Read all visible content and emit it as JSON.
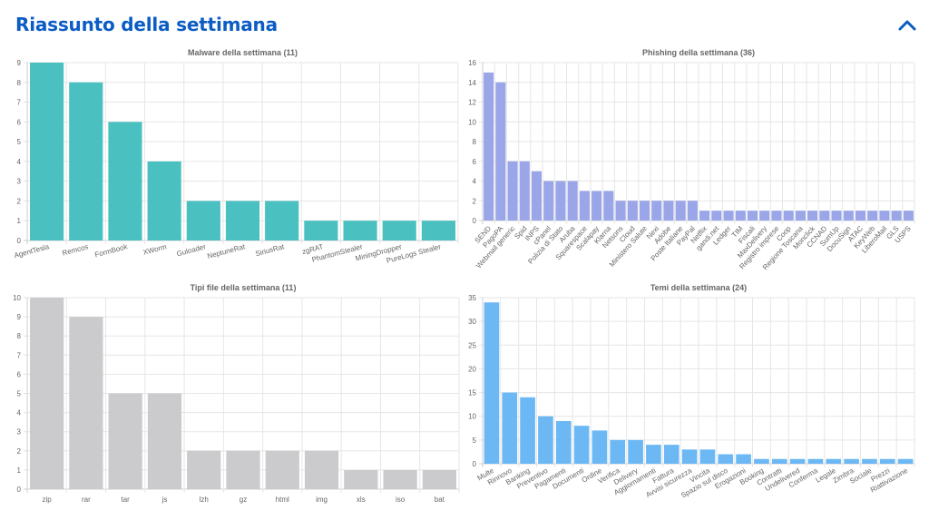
{
  "header": {
    "title": "Riassunto della settimana",
    "collapse_icon": "chevron-up-icon"
  },
  "charts": [
    {
      "id": "malware",
      "type": "bar",
      "title": "Malware della settimana (11)",
      "color": "#4bc0c0",
      "ylim": [
        0,
        9
      ],
      "yticks": [
        0,
        1,
        2,
        3,
        4,
        5,
        6,
        7,
        8,
        9
      ],
      "xlabel_rotation": "tilted",
      "categories": [
        "AgentTesla",
        "Remcos",
        "FormBook",
        "XWorm",
        "Guloader",
        "NeptuneRat",
        "SiriusRat",
        "zgRAT",
        "PhantomStealer",
        "MiningDropper",
        "PureLogs Stealer"
      ],
      "values": [
        9,
        8,
        6,
        4,
        2,
        2,
        2,
        1,
        1,
        1,
        1
      ]
    },
    {
      "id": "phishing",
      "type": "bar",
      "title": "Phishing della settimana (36)",
      "color": "#9ba6e8",
      "ylim": [
        0,
        16
      ],
      "yticks": [
        0,
        2,
        4,
        6,
        8,
        10,
        12,
        14,
        16
      ],
      "xlabel_rotation": "steep",
      "categories": [
        "SEND",
        "PagoPA",
        "Webmail generic",
        "Spid",
        "INPS",
        "cPanel",
        "Polizia di Stato",
        "Aruba",
        "Squarespace",
        "Scalapay",
        "Klarna",
        "Netsons",
        "Cloud",
        "Ministero Salute",
        "Nexi",
        "Adobe",
        "Poste Italiane",
        "PayPal",
        "Netflix",
        "gandi.net",
        "Ledger",
        "TIM",
        "Fiscali",
        "MaxDelivery",
        "Registro imprese",
        "Coop",
        "Regione Toscana",
        "Monclick",
        "CCNAD",
        "SumUp",
        "DocuSign",
        "ATAC",
        "KeyWeb",
        "LiberoMail",
        "GLS",
        "USPS"
      ],
      "values": [
        15,
        14,
        6,
        6,
        5,
        4,
        4,
        4,
        3,
        3,
        3,
        2,
        2,
        2,
        2,
        2,
        2,
        2,
        1,
        1,
        1,
        1,
        1,
        1,
        1,
        1,
        1,
        1,
        1,
        1,
        1,
        1,
        1,
        1,
        1,
        1
      ]
    },
    {
      "id": "filetypes",
      "type": "bar",
      "title": "Tipi file della settimana (11)",
      "color": "#cbcbcd",
      "ylim": [
        0,
        10
      ],
      "yticks": [
        0,
        1,
        2,
        3,
        4,
        5,
        6,
        7,
        8,
        9,
        10
      ],
      "xlabel_rotation": "none",
      "categories": [
        "zip",
        "rar",
        "tar",
        "js",
        "lzh",
        "gz",
        "html",
        "img",
        "xls",
        "iso",
        "bat"
      ],
      "values": [
        10,
        9,
        5,
        5,
        2,
        2,
        2,
        2,
        1,
        1,
        1
      ]
    },
    {
      "id": "themes",
      "type": "bar",
      "title": "Temi della settimana (24)",
      "color": "#6cb8f4",
      "ylim": [
        0,
        35
      ],
      "yticks": [
        0,
        5,
        10,
        15,
        20,
        25,
        30,
        35
      ],
      "xlabel_rotation": "tilted",
      "categories": [
        "Multe",
        "Rinnovo",
        "Banking",
        "Preventivo",
        "Pagamenti",
        "Documenti",
        "Ordine",
        "Verifica",
        "Delivery",
        "Aggiornamenti",
        "Fattura",
        "Avvisi sicurezza",
        "Vincita",
        "Spazio sul disco",
        "Erogazioni",
        "Booking",
        "Contratti",
        "Undelivered",
        "Conferma",
        "Legale",
        "Zimbra",
        "Sociale",
        "Prezzi",
        "Riattivazione"
      ],
      "values": [
        34,
        15,
        14,
        10,
        9,
        8,
        7,
        5,
        5,
        4,
        4,
        3,
        3,
        2,
        2,
        1,
        1,
        1,
        1,
        1,
        1,
        1,
        1,
        1
      ]
    }
  ]
}
